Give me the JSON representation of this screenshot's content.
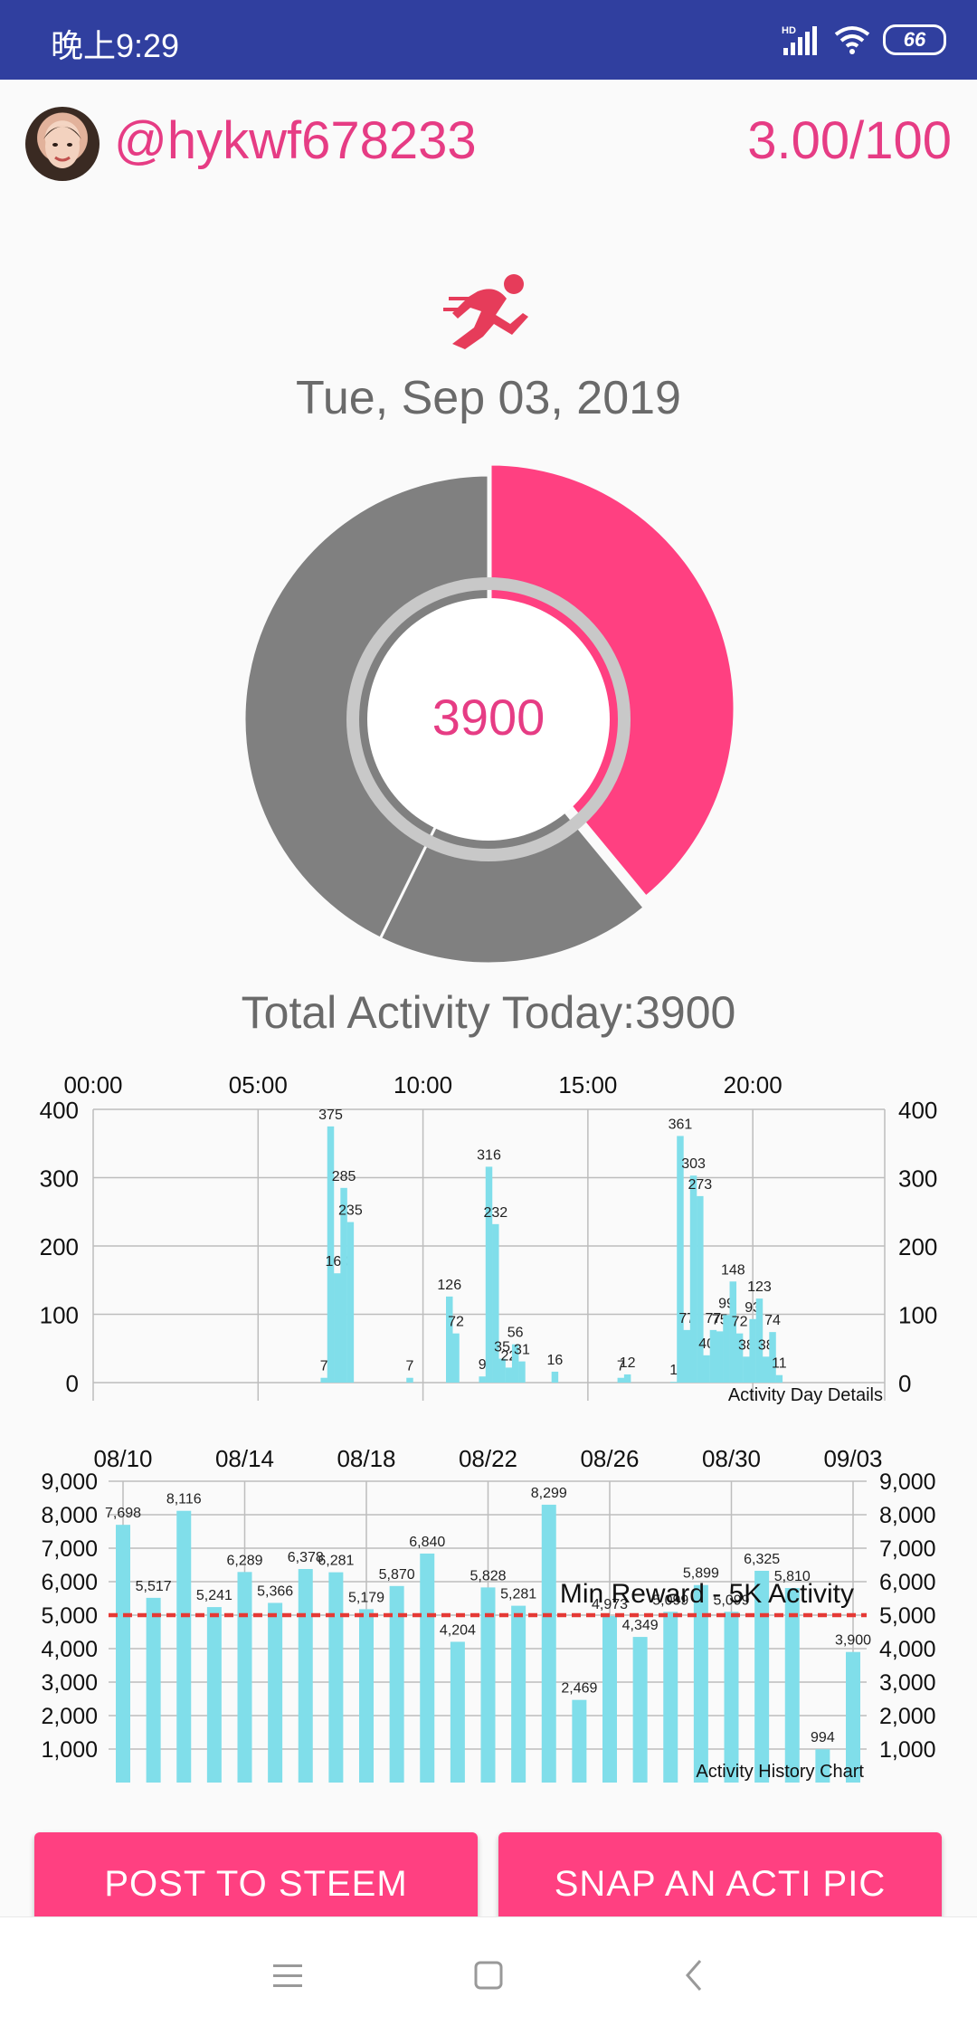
{
  "status_bar": {
    "time": "晚上9:29",
    "hd": "HD",
    "battery": "66",
    "icons": [
      "signal-icon",
      "wifi-icon",
      "battery-icon"
    ]
  },
  "profile": {
    "username": "@hykwf678233",
    "score": "3.00/100"
  },
  "date": "Tue, Sep 03, 2019",
  "donut": {
    "center_value": "3900",
    "completed_fraction": 0.39,
    "colors": {
      "completed": "#ff4081",
      "remaining": "#808080"
    }
  },
  "total_activity": "Total Activity Today:3900",
  "chart_data": [
    {
      "type": "bar",
      "description": "Activity Day Details",
      "x_ticks": [
        "00:00",
        "05:00",
        "10:00",
        "15:00",
        "20:00"
      ],
      "y_ticks": [
        "0",
        "100",
        "200",
        "300",
        "400"
      ],
      "ylim": [
        0,
        400
      ],
      "xlim_hours": [
        0,
        24
      ],
      "grid": true,
      "bar_color": "#80deea",
      "x_hours": [
        7.0,
        7.2,
        7.4,
        7.6,
        7.8,
        8.0,
        9.6,
        10.8,
        11.0,
        11.8,
        12.0,
        12.2,
        12.4,
        12.6,
        12.8,
        13.0,
        14.0,
        16.0,
        16.2,
        17.6,
        17.8,
        18.0,
        18.2,
        18.4,
        18.6,
        18.8,
        19.0,
        19.2,
        19.4,
        19.6,
        19.8,
        20.0,
        20.2,
        20.4,
        20.6,
        20.8,
        21.0
      ],
      "values": [
        7,
        375,
        160,
        285,
        235,
        0,
        7,
        126,
        72,
        9,
        316,
        232,
        35,
        22,
        56,
        31,
        16,
        7,
        12,
        1,
        361,
        77,
        303,
        273,
        40,
        77,
        75,
        99,
        148,
        72,
        38,
        93,
        123,
        38,
        74,
        11,
        0
      ]
    },
    {
      "type": "bar",
      "description": "Activity History Chart",
      "x_ticks": [
        "08/10",
        "08/14",
        "08/18",
        "08/22",
        "08/26",
        "08/30",
        "09/03"
      ],
      "y_ticks": [
        "1,000",
        "2,000",
        "3,000",
        "4,000",
        "5,000",
        "6,000",
        "7,000",
        "8,000",
        "9,000"
      ],
      "ylim": [
        0,
        9000
      ],
      "grid": true,
      "bar_color": "#80deea",
      "values": [
        7698,
        5517,
        8116,
        5241,
        6289,
        5366,
        6378,
        6281,
        5179,
        5870,
        6840,
        4204,
        5828,
        5281,
        8299,
        2469,
        4973,
        4349,
        5099,
        5899,
        5099,
        6325,
        5810,
        994,
        3900
      ],
      "labels": [
        "7,698",
        "5,517",
        "8,116",
        "5,241",
        "6,289",
        "5,366",
        "6,378",
        "6,281",
        "5,179",
        "5,870",
        "6,840",
        "4,204",
        "5,828",
        "5,281",
        "8,299",
        "2,469",
        "4,973",
        "4,349",
        "5,099",
        "5,899",
        "5,099",
        "6,325",
        "5,810",
        "994",
        "3,900"
      ],
      "threshold": {
        "value": 5000,
        "label": "Min Reward - 5K Activity",
        "color": "#e53935"
      }
    }
  ],
  "buttons": {
    "post": "POST TO STEEM",
    "snap": "SNAP AN ACTI PIC"
  },
  "nav_icons": [
    "menu-icon",
    "home-square-icon",
    "back-chevron-icon"
  ]
}
